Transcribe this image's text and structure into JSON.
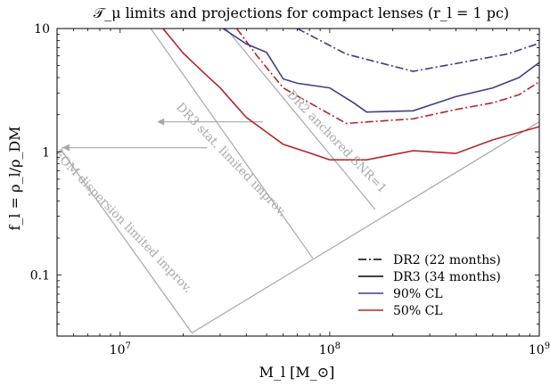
{
  "chart_data": {
    "type": "line",
    "title": "𝒯_μ limits and projections for compact lenses (r_l = 1 pc)",
    "xlabel": "M_l [M_⊙]",
    "ylabel": "f_l = ρ_l/ρ_DM",
    "x_scale": "log",
    "y_scale": "log",
    "xlim": [
      5000000,
      1000000000
    ],
    "ylim": [
      0.032,
      10
    ],
    "x_ticks": [
      {
        "value": 10000000,
        "base": "10",
        "exp": "7"
      },
      {
        "value": 100000000,
        "base": "10",
        "exp": "8"
      },
      {
        "value": 1000000000,
        "base": "10",
        "exp": "9"
      }
    ],
    "y_ticks": [
      {
        "value": 0.1,
        "label": "0.1"
      },
      {
        "value": 1,
        "label": "1"
      },
      {
        "value": 10,
        "label": "10"
      }
    ],
    "grid": false,
    "legend_position": "lower right",
    "legend": [
      {
        "label": "DR2 (22 months)",
        "style": "dashdot",
        "color": "#000000"
      },
      {
        "label": "DR3 (34 months)",
        "style": "solid",
        "color": "#000000"
      },
      {
        "label": "90% CL",
        "style": "solid",
        "color": "#3f3d8c"
      },
      {
        "label": "50% CL",
        "style": "solid",
        "color": "#b5252a"
      }
    ],
    "series": [
      {
        "key": "dr2_90",
        "style": "dashdot",
        "color": "#3f3d8c",
        "x": [
          70000000,
          120000000,
          250000000,
          400000000,
          700000000,
          1000000000
        ],
        "y": [
          10,
          6.2,
          4.5,
          5.2,
          6.2,
          7.6
        ]
      },
      {
        "key": "dr2_50",
        "style": "dashdot",
        "color": "#b5252a",
        "x": [
          36000000,
          45000000,
          60000000,
          80000000,
          120000000,
          250000000,
          400000000,
          600000000,
          800000000,
          1000000000
        ],
        "y": [
          10,
          6.0,
          3.3,
          2.5,
          1.7,
          1.85,
          2.2,
          2.5,
          2.9,
          3.7
        ]
      },
      {
        "key": "dr3_90",
        "style": "solid",
        "color": "#3f3d8c",
        "x": [
          31000000,
          40000000,
          50000000,
          60000000,
          70000000,
          100000000,
          130000000,
          150000000,
          250000000,
          400000000,
          600000000,
          800000000,
          1000000000
        ],
        "y": [
          10,
          7.5,
          6.4,
          3.9,
          3.6,
          3.3,
          2.5,
          2.1,
          2.15,
          2.8,
          3.3,
          4.0,
          5.3
        ]
      },
      {
        "key": "dr3_50",
        "style": "solid",
        "color": "#b5252a",
        "x": [
          16000000,
          20000000,
          25000000,
          30000000,
          40000000,
          60000000,
          80000000,
          100000000,
          150000000,
          250000000,
          400000000,
          600000000,
          1000000000
        ],
        "y": [
          10,
          6.3,
          4.4,
          3.3,
          1.9,
          1.15,
          0.98,
          0.86,
          0.86,
          1.02,
          0.97,
          1.25,
          1.6
        ]
      }
    ],
    "projection_lines": [
      {
        "key": "dr2_anchored",
        "color": "#a8a8a8",
        "x": [
          32000000,
          165000000
        ],
        "y": [
          10,
          0.34
        ]
      },
      {
        "key": "dr3_stat",
        "color": "#a8a8a8",
        "x": [
          14000000,
          83000000
        ],
        "y": [
          10,
          0.137
        ]
      },
      {
        "key": "eom_dispersion",
        "color": "#a8a8a8",
        "x": [
          5300000,
          5300000,
          22000000,
          1000000000
        ],
        "y": [
          1.1,
          1.0,
          0.034,
          1.75
        ]
      }
    ],
    "arrows": [
      {
        "key": "arrow_dr3",
        "color": "#a8a8a8",
        "x": [
          48000000,
          15000000
        ],
        "y": [
          1.75,
          1.75
        ]
      },
      {
        "key": "arrow_eom",
        "color": "#a8a8a8",
        "x": [
          26000000,
          5300000
        ],
        "y": [
          1.08,
          1.08
        ]
      }
    ],
    "annotations": [
      {
        "key": "anno_dr2",
        "text": "DR2 anchored SNR=1",
        "x": 105000000,
        "y": 1.15,
        "rotation": 46
      },
      {
        "key": "anno_dr3",
        "text": "DR3 stat. limited improv.",
        "x": 33000000,
        "y": 0.82,
        "rotation": 46
      },
      {
        "key": "anno_eom",
        "text": "EOM dispersion limited improv.",
        "x": 10000000,
        "y": 0.26,
        "rotation": 46
      }
    ]
  }
}
